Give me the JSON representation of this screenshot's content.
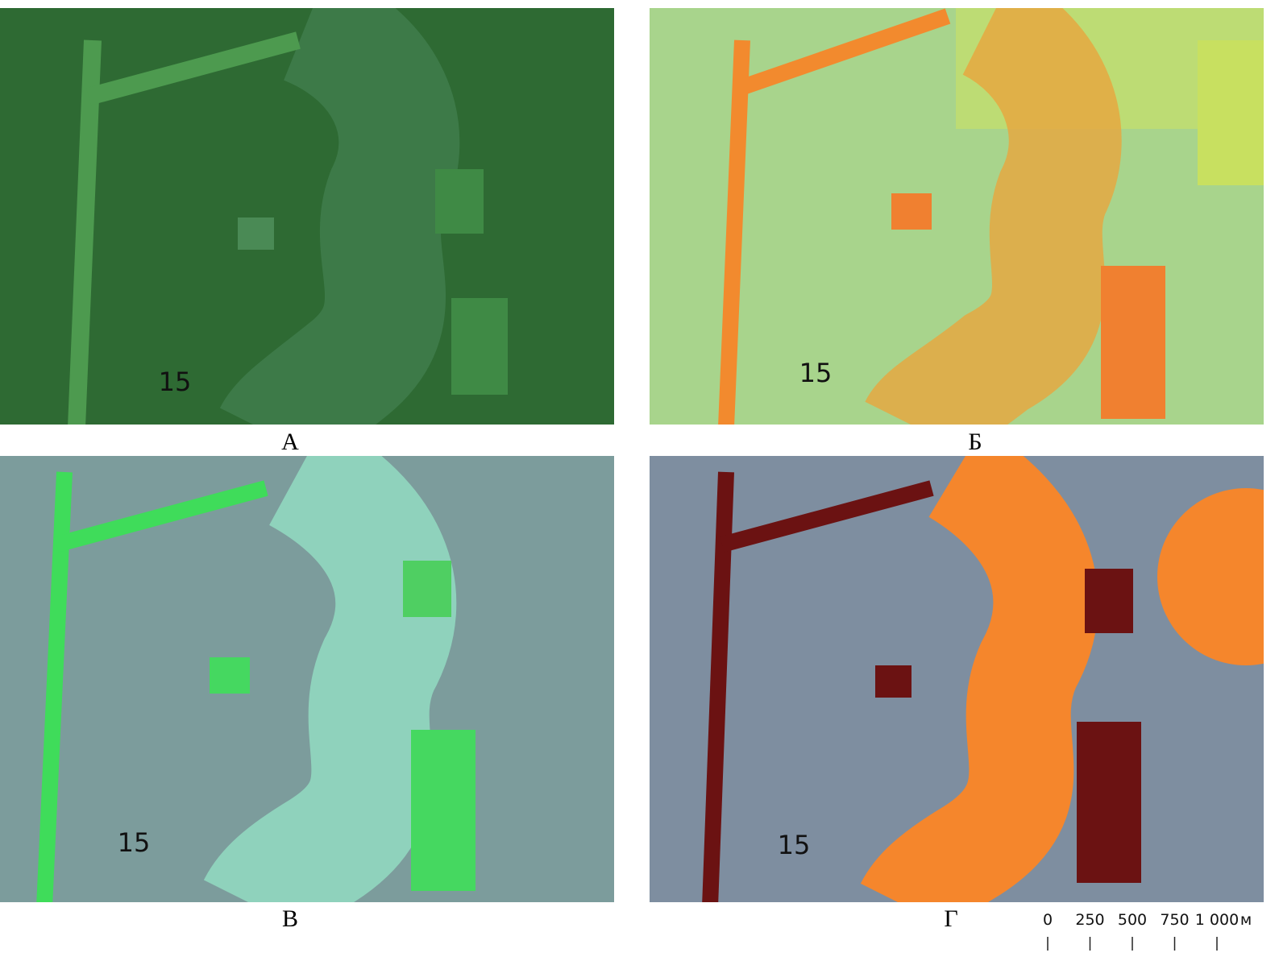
{
  "panels": [
    {
      "label": "А",
      "marker": "15"
    },
    {
      "label": "Б",
      "marker": "15"
    },
    {
      "label": "В",
      "marker": "15"
    },
    {
      "label": "Г",
      "marker": "15"
    }
  ],
  "scale_bar": {
    "ticks": [
      "0",
      "250",
      "500",
      "750",
      "1 000"
    ],
    "unit": "м"
  }
}
